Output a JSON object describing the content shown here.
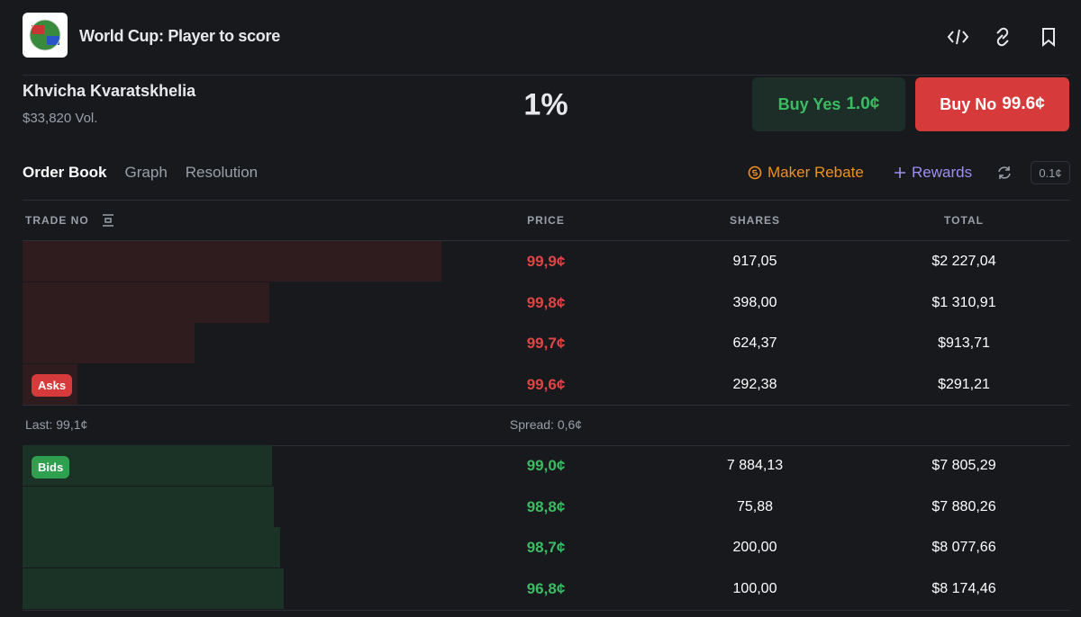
{
  "header": {
    "title": "World Cup: Player to score"
  },
  "market": {
    "name": "Khvicha Kvaratskhelia",
    "volume": "$33,820 Vol.",
    "chance": "1%",
    "buy_yes": {
      "label": "Buy Yes",
      "price": "1.0¢"
    },
    "buy_no": {
      "label": "Buy No",
      "price": "99.6¢"
    }
  },
  "tabs": [
    "Order Book",
    "Graph",
    "Resolution"
  ],
  "actions": {
    "maker_rebate": "Maker Rebate",
    "rewards": "Rewards",
    "tick_size": "0.1¢"
  },
  "table": {
    "columns": [
      "TRADE NO",
      "PRICE",
      "SHARES",
      "TOTAL"
    ],
    "asks_label": "Asks",
    "asks": [
      [
        "99,9¢",
        "917,05",
        "$2 227,04"
      ],
      [
        "99,8¢",
        "398,00",
        "$1 310,91"
      ],
      [
        "99,7¢",
        "624,37",
        "$913,71"
      ],
      [
        "99,6¢",
        "292,38",
        "$291,21"
      ]
    ],
    "last": "Last: 99,1¢",
    "spread": "Spread: 0,6¢",
    "bids_label": "Bids",
    "bids": [
      [
        "99,0¢",
        "7 884,13",
        "$7 805,29"
      ],
      [
        "98,8¢",
        "75,88",
        "$7 880,26"
      ],
      [
        "98,7¢",
        "200,00",
        "$8 077,66"
      ],
      [
        "96,8¢",
        "100,00",
        "$8 174,46"
      ]
    ]
  }
}
